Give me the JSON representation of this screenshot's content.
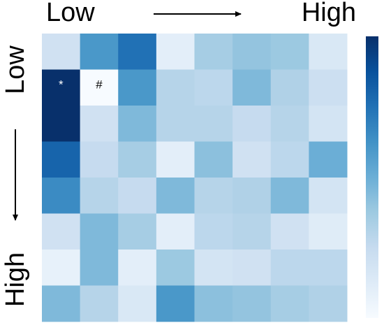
{
  "chart_data": {
    "type": "heatmap",
    "x_labels": [
      "Low",
      "High"
    ],
    "y_labels": [
      "Low",
      "High"
    ],
    "values": [
      [
        0.2,
        0.6,
        0.75,
        0.1,
        0.35,
        0.4,
        0.38,
        0.15
      ],
      [
        1.0,
        0.0,
        0.6,
        0.3,
        0.28,
        0.45,
        0.32,
        0.22
      ],
      [
        1.0,
        0.2,
        0.45,
        0.3,
        0.3,
        0.25,
        0.3,
        0.18
      ],
      [
        0.8,
        0.25,
        0.35,
        0.1,
        0.42,
        0.2,
        0.28,
        0.5
      ],
      [
        0.65,
        0.3,
        0.25,
        0.45,
        0.3,
        0.32,
        0.45,
        0.18
      ],
      [
        0.2,
        0.45,
        0.35,
        0.1,
        0.28,
        0.3,
        0.2,
        0.12
      ],
      [
        0.08,
        0.45,
        0.1,
        0.38,
        0.18,
        0.2,
        0.28,
        0.28
      ],
      [
        0.45,
        0.3,
        0.15,
        0.6,
        0.42,
        0.4,
        0.35,
        0.32
      ]
    ],
    "annotations": [
      {
        "text": "*",
        "row": 1,
        "col": 0,
        "color": "#ffffff"
      },
      {
        "text": "#",
        "row": 1,
        "col": 1,
        "color": "#000000"
      }
    ],
    "zlim": [
      0,
      1
    ],
    "colormap": [
      "#f7fbff",
      "#deebf7",
      "#c6dbef",
      "#9ecae1",
      "#6baed6",
      "#4292c6",
      "#2171b5",
      "#08519c",
      "#08306b"
    ],
    "colorbar": true
  }
}
